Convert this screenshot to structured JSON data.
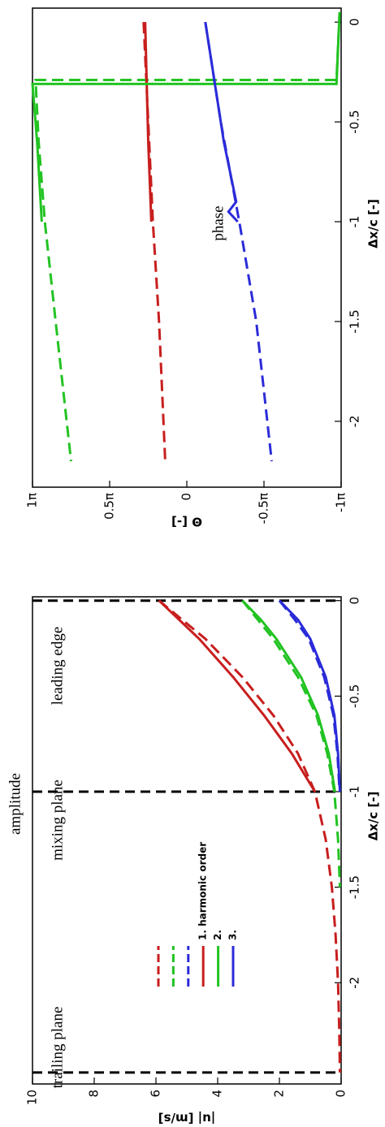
{
  "chart_data": [
    {
      "type": "line",
      "title": "amplitude",
      "xlabel": "Δx/c [-]",
      "ylabel": "|u| [m/s]",
      "xlim": [
        -2.53,
        0.02
      ],
      "xticks": [
        -2,
        -1.5,
        -1,
        -0.5,
        0
      ],
      "ylim": [
        0,
        10
      ],
      "yticks": [
        0,
        2,
        4,
        6,
        8,
        10
      ],
      "reference_lines": [
        0,
        -1,
        -2.47
      ],
      "annotations": [
        "trailing plane",
        "mixing plane",
        "leading edge"
      ],
      "legend": true,
      "series": [
        {
          "color": "#c81e1e",
          "dash": true,
          "x": [
            0,
            -0.2,
            -0.4,
            -0.6,
            -0.8,
            -1.0,
            -1.25,
            -1.5,
            -1.75,
            -2.0,
            -2.25,
            -2.47
          ],
          "values": [
            5.9,
            4.4,
            3.2,
            2.2,
            1.4,
            0.85,
            0.5,
            0.3,
            0.18,
            0.1,
            0.06,
            0.04
          ]
        },
        {
          "color": "#22c322",
          "dash": true,
          "x": [
            0,
            -0.1,
            -0.2,
            -0.4,
            -0.6,
            -0.8,
            -1.0,
            -1.25,
            -1.5
          ],
          "values": [
            3.2,
            2.7,
            2.2,
            1.4,
            0.8,
            0.45,
            0.22,
            0.1,
            0.04
          ]
        },
        {
          "color": "#2b2bd9",
          "dash": true,
          "x": [
            0,
            -0.1,
            -0.2,
            -0.4,
            -0.6,
            -0.8,
            -1.0
          ],
          "values": [
            2.0,
            1.5,
            1.05,
            0.55,
            0.25,
            0.12,
            0.05
          ]
        },
        {
          "name": "1. harmonic order",
          "color": "#c81e1e",
          "dash": false,
          "x": [
            0,
            -0.2,
            -0.4,
            -0.6,
            -0.8,
            -1.0
          ],
          "values": [
            5.9,
            4.6,
            3.5,
            2.5,
            1.6,
            0.85
          ]
        },
        {
          "name": "2.",
          "color": "#22c322",
          "dash": false,
          "x": [
            0,
            -0.1,
            -0.2,
            -0.4,
            -0.6,
            -0.8,
            -1.0
          ],
          "values": [
            3.2,
            2.6,
            2.1,
            1.3,
            0.75,
            0.4,
            0.2
          ]
        },
        {
          "name": "3.",
          "color": "#2b2bd9",
          "dash": false,
          "x": [
            0,
            -0.1,
            -0.2,
            -0.4,
            -0.6,
            -0.8,
            -1.0
          ],
          "values": [
            2.0,
            1.4,
            1.0,
            0.5,
            0.22,
            0.1,
            0.04
          ]
        }
      ]
    },
    {
      "type": "line",
      "title": "phase",
      "xlabel": "Δx/c [-]",
      "ylabel": "Θ [-]",
      "xlim": [
        -2.33,
        0.07
      ],
      "xticks": [
        -2,
        -1.5,
        -1,
        -0.5,
        0
      ],
      "ylim": [
        -1,
        1
      ],
      "yticks": [
        {
          "value": -1,
          "label": "-1π"
        },
        {
          "value": -0.5,
          "label": "-0.5π"
        },
        0,
        {
          "value": 0.5,
          "label": "0.5π"
        },
        {
          "value": 1,
          "label": "1π"
        }
      ],
      "legend": false,
      "series": [
        {
          "color": "#c81e1e",
          "dash": true,
          "x": [
            0,
            -0.5,
            -1,
            -1.5,
            -2.2
          ],
          "values": [
            0.28,
            0.25,
            0.22,
            0.18,
            0.14
          ]
        },
        {
          "color": "#22c322",
          "dash": true,
          "x": [
            0.05,
            -0.29,
            -0.29,
            -0.6,
            -1,
            -1.5,
            -2.2
          ],
          "values": [
            -0.99,
            -0.97,
            0.98,
            0.96,
            0.92,
            0.85,
            0.75
          ]
        },
        {
          "color": "#2b2bd9",
          "dash": true,
          "x": [
            0,
            -0.5,
            -1,
            -1.5,
            -2.2
          ],
          "values": [
            -0.12,
            -0.22,
            -0.34,
            -0.45,
            -0.55
          ]
        },
        {
          "color": "#c81e1e",
          "dash": false,
          "x": [
            0,
            -0.3,
            -0.6,
            -1.0
          ],
          "values": [
            0.27,
            0.26,
            0.25,
            0.23
          ]
        },
        {
          "color": "#22c322",
          "dash": false,
          "x": [
            0.05,
            -0.31,
            -0.31,
            -0.6,
            -1.0
          ],
          "values": [
            -0.99,
            -0.97,
            1.0,
            0.97,
            0.94
          ]
        },
        {
          "color": "#2b2bd9",
          "dash": false,
          "x": [
            0,
            -0.3,
            -0.6,
            -0.9,
            -0.95,
            -1.0
          ],
          "values": [
            -0.12,
            -0.18,
            -0.24,
            -0.32,
            -0.27,
            -0.33
          ]
        }
      ]
    }
  ]
}
